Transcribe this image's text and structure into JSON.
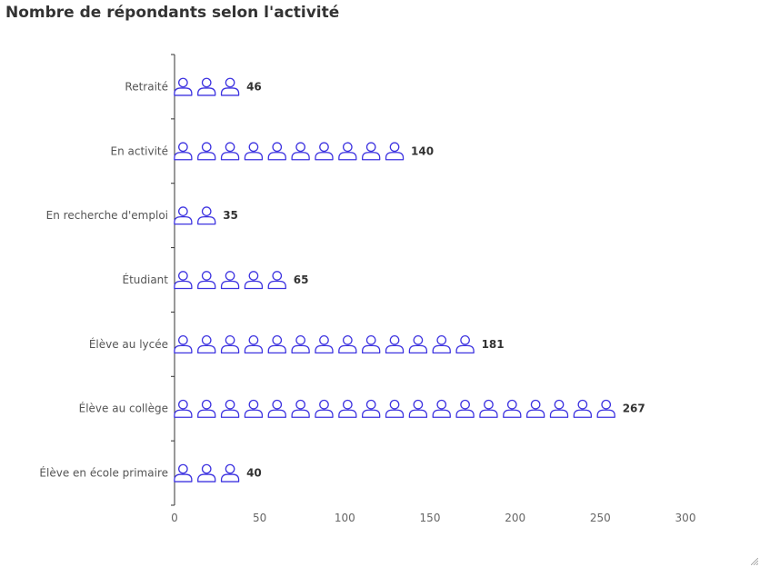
{
  "title": "Nombre de répondants selon l'activité",
  "chart_data": {
    "type": "bar",
    "style": "pictogram",
    "title": "Nombre de répondants selon l'activité",
    "icon": "person-outline-icon",
    "icon_unit": 14.3,
    "categories": [
      "Retraité",
      "En activité",
      "En recherche d'emploi",
      "Étudiant",
      "Élève au lycée",
      "Élève au collège",
      "Élève en école primaire"
    ],
    "values": [
      46,
      140,
      35,
      65,
      181,
      267,
      40
    ],
    "x_ticks": [
      0,
      50,
      100,
      150,
      200,
      250,
      300
    ],
    "xlim": [
      0,
      300
    ],
    "xlabel": "",
    "ylabel": "",
    "grid": false,
    "colors": {
      "icon": "#3d33e0",
      "axis": "#333333"
    }
  }
}
